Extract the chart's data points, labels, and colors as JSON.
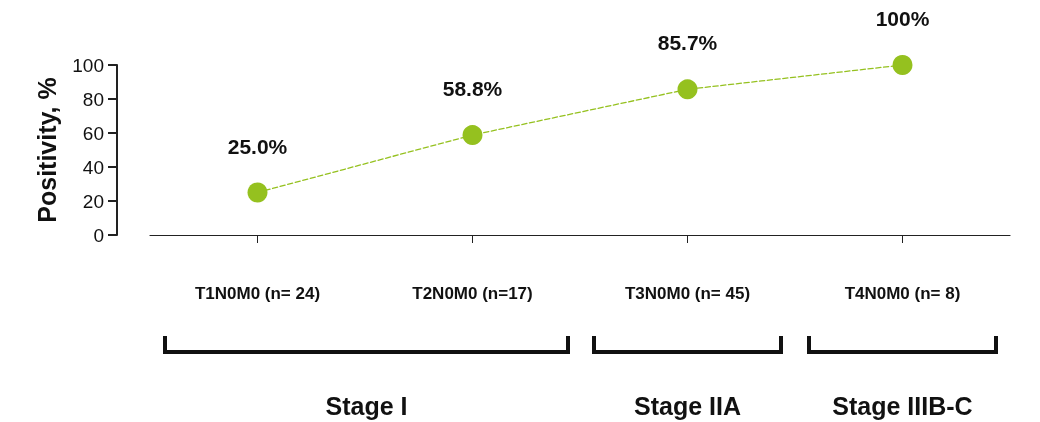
{
  "chart_data": {
    "type": "line",
    "ylabel": "Positivity, %",
    "categories": [
      "T1N0M0 (n= 24)",
      "T2N0M0 (n=17)",
      "T3N0M0 (n= 45)",
      "T4N0M0 (n= 8)"
    ],
    "series": [
      {
        "color": "#95c11f",
        "values": [
          25,
          58.8,
          85.7,
          100
        ],
        "value_labels": [
          "25.0%",
          "58.8%",
          "85.7%",
          "100%"
        ]
      }
    ],
    "ylim": [
      0,
      100
    ],
    "yticks": [
      0,
      20,
      40,
      60,
      80,
      100
    ],
    "grid": false,
    "marker": "circle",
    "line_style": "dashed",
    "annotations": [
      "Stage I",
      "Stage IIA",
      "Stage IIIB-C"
    ]
  }
}
